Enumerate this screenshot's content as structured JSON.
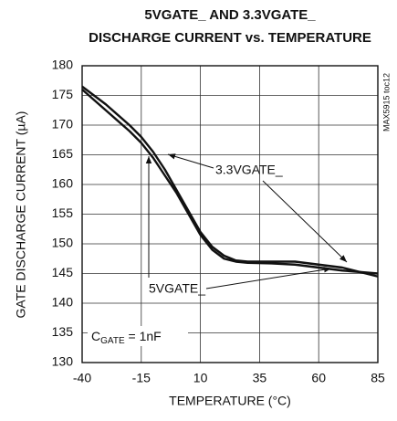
{
  "chart_data": {
    "type": "line",
    "title": [
      "5VGATE_ AND 3.3VGATE_",
      "DISCHARGE CURRENT vs. TEMPERATURE"
    ],
    "xlabel": "TEMPERATURE (°C)",
    "ylabel": "GATE DISCHARGE CURRENT (µA)",
    "x": [
      -40,
      -30,
      -20,
      -15,
      -10,
      -5,
      0,
      5,
      10,
      15,
      20,
      25,
      30,
      40,
      50,
      60,
      70,
      85
    ],
    "series": [
      {
        "name": "3.3VGATE_",
        "color": "#111111",
        "values": [
          176.5,
          173.5,
          170,
          168,
          165.5,
          162.5,
          159,
          155.5,
          152,
          149.5,
          148,
          147.2,
          147,
          147,
          147,
          146.5,
          146,
          144.5
        ]
      },
      {
        "name": "5VGATE_",
        "color": "#111111",
        "values": [
          176,
          172.5,
          169,
          167,
          164.5,
          161.5,
          158.5,
          155,
          151.5,
          149,
          147.5,
          147,
          146.8,
          146.7,
          146.5,
          146,
          145.5,
          145
        ]
      }
    ],
    "cgate_label": [
      "C",
      "GATE",
      " = 1nF"
    ],
    "side_note": "MAX5915 toc12",
    "xlim": [
      -40,
      85
    ],
    "xticks": [
      -40,
      -15,
      10,
      35,
      60,
      85
    ],
    "ylim": [
      130,
      180
    ],
    "yticks": [
      130,
      135,
      140,
      145,
      150,
      155,
      160,
      165,
      170,
      175,
      180
    ],
    "grid": true
  }
}
